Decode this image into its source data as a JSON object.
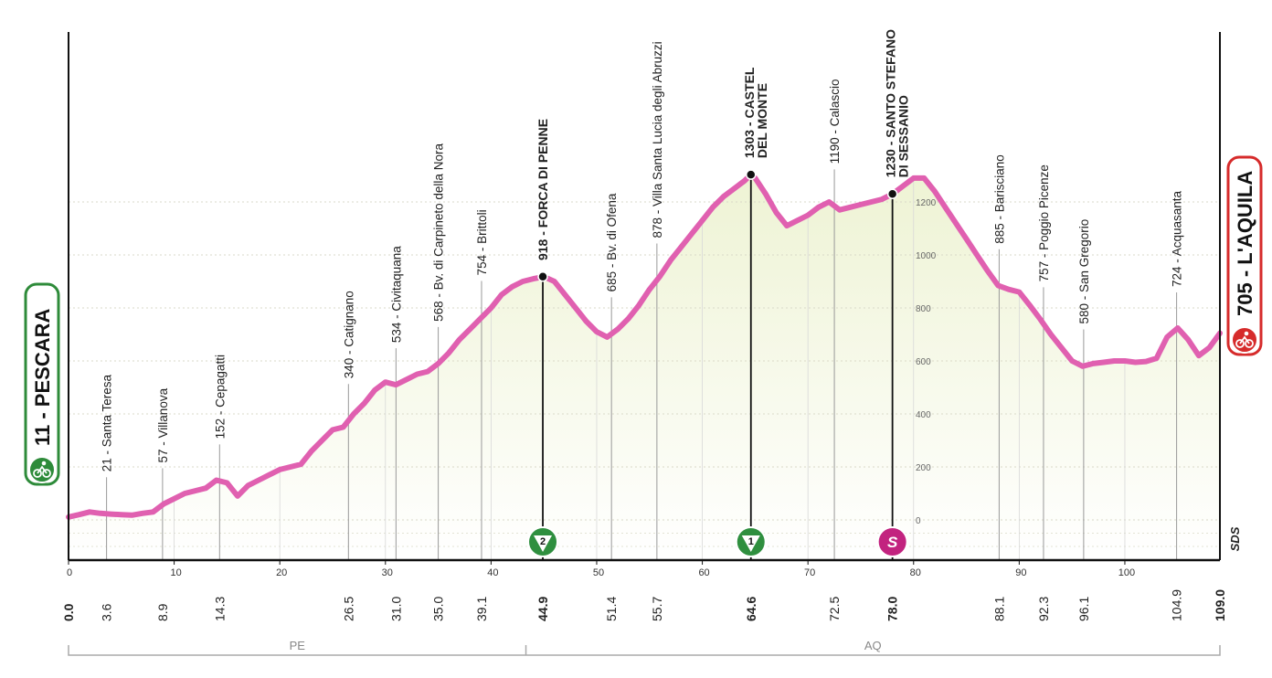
{
  "colors": {
    "profile_line": "#e060b0",
    "fill_top": "#eef3d4",
    "fill_bottom": "#ffffff",
    "axis": "#111111",
    "grid": "#cccccc",
    "start_green": "#2e8b3a",
    "finish_red": "#d62b2b",
    "kom_green": "#2f8f3f",
    "sprint_magenta": "#c2237f"
  },
  "start": {
    "label": "11 - PESCARA",
    "icon": "cyclist-icon"
  },
  "finish": {
    "label": "705 - L'AQUILA",
    "icon": "cyclist-icon"
  },
  "provinces": [
    {
      "code": "PE"
    },
    {
      "code": "AQ"
    }
  ],
  "sds_label": "SDS",
  "chart_data": {
    "type": "area",
    "title": "",
    "xlabel": "",
    "ylabel": "",
    "xlim": [
      0,
      109
    ],
    "ylim": [
      -150,
      1800
    ],
    "y_ticks": [
      0,
      200,
      400,
      600,
      800,
      1000,
      1200
    ],
    "x_ticks": [
      0,
      10,
      20,
      30,
      40,
      50,
      60,
      70,
      80,
      90,
      100
    ],
    "profile": {
      "x": [
        0,
        1,
        2,
        3,
        4,
        5,
        6,
        7,
        8,
        9,
        10,
        11,
        12,
        13,
        14,
        15,
        16,
        17,
        18,
        19,
        20,
        21,
        22,
        23,
        24,
        25,
        26,
        27,
        28,
        29,
        30,
        31,
        32,
        33,
        34,
        35,
        36,
        37,
        38,
        39,
        40,
        41,
        42,
        43,
        44,
        45,
        46,
        47,
        48,
        49,
        50,
        51,
        52,
        53,
        54,
        55,
        56,
        57,
        58,
        59,
        60,
        61,
        62,
        63,
        64,
        64.6,
        65,
        66,
        67,
        68,
        69,
        70,
        71,
        72,
        73,
        74,
        75,
        76,
        77,
        78,
        79,
        80,
        81,
        82,
        83,
        84,
        85,
        86,
        87,
        88,
        89,
        90,
        91,
        92,
        93,
        94,
        95,
        96,
        97,
        98,
        99,
        100,
        101,
        102,
        103,
        104,
        105,
        106,
        107,
        108,
        109
      ],
      "y": [
        11,
        20,
        30,
        25,
        22,
        20,
        18,
        25,
        30,
        60,
        80,
        100,
        110,
        120,
        150,
        140,
        90,
        130,
        150,
        170,
        190,
        200,
        210,
        260,
        300,
        340,
        350,
        400,
        440,
        490,
        520,
        510,
        530,
        550,
        560,
        590,
        630,
        680,
        720,
        760,
        800,
        850,
        880,
        900,
        910,
        918,
        900,
        850,
        800,
        750,
        710,
        690,
        720,
        760,
        810,
        870,
        920,
        980,
        1030,
        1080,
        1130,
        1180,
        1220,
        1250,
        1280,
        1303,
        1290,
        1230,
        1160,
        1110,
        1130,
        1150,
        1180,
        1200,
        1170,
        1180,
        1190,
        1200,
        1210,
        1230,
        1260,
        1290,
        1290,
        1240,
        1180,
        1120,
        1060,
        1000,
        940,
        885,
        870,
        860,
        810,
        757,
        700,
        650,
        600,
        580,
        590,
        595,
        600,
        600,
        595,
        598,
        610,
        690,
        724,
        680,
        620,
        650,
        705
      ]
    },
    "waypoints": [
      {
        "km": "0.0",
        "x": 0,
        "alt": 11,
        "label": "",
        "bold": true
      },
      {
        "km": "3.6",
        "x": 3.6,
        "alt": 21,
        "label": "21 - Santa Teresa",
        "bold": false
      },
      {
        "km": "8.9",
        "x": 8.9,
        "alt": 57,
        "label": "57 - Villanova",
        "bold": false
      },
      {
        "km": "14.3",
        "x": 14.3,
        "alt": 152,
        "label": "152 - Cepagatti",
        "bold": false
      },
      {
        "km": "26.5",
        "x": 26.5,
        "alt": 340,
        "label": "340 - Catignano",
        "bold": false
      },
      {
        "km": "31.0",
        "x": 31.0,
        "alt": 534,
        "label": "534 - Civitaquana",
        "bold": false
      },
      {
        "km": "35.0",
        "x": 35.0,
        "alt": 568,
        "label": "568 - Bv. di Carpineto della Nora",
        "bold": false
      },
      {
        "km": "39.1",
        "x": 39.1,
        "alt": 754,
        "label": "754 - Brittoli",
        "bold": false
      },
      {
        "km": "44.9",
        "x": 44.9,
        "alt": 918,
        "label": "918 - FORCA DI PENNE",
        "bold": true
      },
      {
        "km": "51.4",
        "x": 51.4,
        "alt": 685,
        "label": "685 - Bv. di Ofena",
        "bold": false
      },
      {
        "km": "55.7",
        "x": 55.7,
        "alt": 878,
        "label": "878 - Villa Santa Lucia degli Abruzzi",
        "bold": false
      },
      {
        "km": "64.6",
        "x": 64.6,
        "alt": 1303,
        "label": "1303 - CASTEL\nDEL MONTE",
        "bold": true
      },
      {
        "km": "72.5",
        "x": 72.5,
        "alt": 1190,
        "label": "1190 - Calascio",
        "bold": false
      },
      {
        "km": "78.0",
        "x": 78.0,
        "alt": 1230,
        "label": "1230 - SANTO STEFANO\nDI SESSANIO",
        "bold": true
      },
      {
        "km": "88.1",
        "x": 88.1,
        "alt": 885,
        "label": "885 - Barisciano",
        "bold": false
      },
      {
        "km": "92.3",
        "x": 92.3,
        "alt": 757,
        "label": "757 - Poggio Picenze",
        "bold": false
      },
      {
        "km": "96.1",
        "x": 96.1,
        "alt": 580,
        "label": "580 - San Gregorio",
        "bold": false
      },
      {
        "km": "104.9",
        "x": 104.9,
        "alt": 724,
        "label": "724 - Acquasanta",
        "bold": false
      },
      {
        "km": "109.0",
        "x": 109.0,
        "alt": 705,
        "label": "",
        "bold": true
      }
    ],
    "markers": [
      {
        "x": 44.9,
        "alt": 918,
        "type": "kom",
        "text": "2"
      },
      {
        "x": 64.6,
        "alt": 1303,
        "type": "kom",
        "text": "1"
      },
      {
        "x": 78.0,
        "alt": 1230,
        "type": "sprint",
        "text": "S"
      }
    ],
    "province_boundary_x": 43.3
  }
}
